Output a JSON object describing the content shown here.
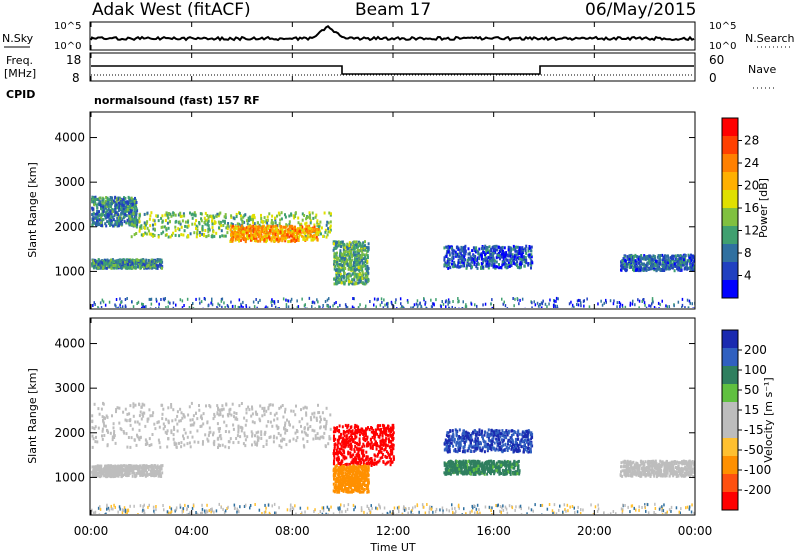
{
  "header": {
    "radar": "Adak West (fitACF)",
    "beam": "Beam 17",
    "date": "06/May/2015"
  },
  "summary_panels": {
    "nsky_label": "N.Sky",
    "nsearch_label": "N.Search",
    "freq_label_1": "Freq.",
    "freq_label_2": "[MHz]",
    "nave_label": "Nave",
    "cpid_label": "CPID",
    "cpid_text": "normalsound (fast) 157 RF",
    "noise_ticks_left": [
      "10^5",
      "10^0"
    ],
    "noise_ticks_right": [
      "10^5",
      "10^0"
    ],
    "freq_ticks": [
      "18",
      "8"
    ],
    "nave_ticks": [
      "60",
      "0"
    ]
  },
  "colorbars": {
    "power": {
      "label": "Power [dB]",
      "ticks": [
        "28",
        "24",
        "20",
        "16",
        "12",
        "8",
        "4"
      ],
      "colors": [
        "#ff0000",
        "#ff4000",
        "#ff8000",
        "#ffb000",
        "#e0e000",
        "#80c040",
        "#40a070",
        "#3070a0",
        "#2040c0",
        "#0000ff"
      ]
    },
    "velocity": {
      "label": "Velocity [m s⁻¹]",
      "ticks": [
        "200",
        "100",
        "50",
        "15",
        "-15",
        "-50",
        "-100",
        "-200"
      ],
      "colors": [
        "#1a2ab0",
        "#3060c0",
        "#2f7f5f",
        "#60c040",
        "#bdbdbd",
        "#bdbdbd",
        "#ffc030",
        "#ff9000",
        "#ff5010",
        "#ff0000"
      ]
    }
  },
  "axes": {
    "ylabel": "Slant Range [km]",
    "yticks": [
      "4000",
      "3000",
      "2000",
      "1000"
    ],
    "xlabel": "Time UT",
    "xticks": [
      "00:00",
      "04:00",
      "08:00",
      "12:00",
      "16:00",
      "20:00",
      "00:00"
    ]
  },
  "chart_data": [
    {
      "type": "heatmap",
      "title": "Power",
      "ylabel": "Slant Range [km]",
      "xlabel": "Time UT",
      "xlim_hours": [
        0,
        24
      ],
      "ylim_km": [
        180,
        4550
      ],
      "colorbar_label": "Power [dB]",
      "colorbar_ticks": [
        28,
        24,
        20,
        16,
        12,
        8,
        4
      ],
      "features": [
        {
          "t_start": 0.0,
          "t_end": 1.8,
          "range_start": 2050,
          "range_end": 2700,
          "value_db": 9
        },
        {
          "t_start": 0.0,
          "t_end": 2.8,
          "range_start": 1100,
          "range_end": 1300,
          "value_db": 10
        },
        {
          "t_start": 1.5,
          "t_end": 9.5,
          "range_start": 1800,
          "range_end": 2350,
          "value_db": 14
        },
        {
          "t_start": 5.5,
          "t_end": 9.0,
          "range_start": 1700,
          "range_end": 2050,
          "value_db": 22
        },
        {
          "t_start": 9.6,
          "t_end": 11.0,
          "range_start": 750,
          "range_end": 1700,
          "value_db": 12
        },
        {
          "t_start": 14.0,
          "t_end": 17.5,
          "range_start": 1100,
          "range_end": 1600,
          "value_db": 6
        },
        {
          "t_start": 21.0,
          "t_end": 24.0,
          "range_start": 1050,
          "range_end": 1400,
          "value_db": 7
        }
      ]
    },
    {
      "type": "heatmap",
      "title": "Velocity",
      "ylabel": "Slant Range [km]",
      "xlabel": "Time UT",
      "xlim_hours": [
        0,
        24
      ],
      "ylim_km": [
        180,
        4550
      ],
      "colorbar_label": "Velocity [m s⁻¹]",
      "colorbar_ticks": [
        200,
        100,
        50,
        15,
        -15,
        -50,
        -100,
        -200
      ],
      "features": [
        {
          "t_start": 0.0,
          "t_end": 9.5,
          "range_start": 1700,
          "range_end": 2700,
          "value_ms": 0
        },
        {
          "t_start": 0.0,
          "t_end": 2.8,
          "range_start": 1050,
          "range_end": 1300,
          "value_ms": 0
        },
        {
          "t_start": 9.6,
          "t_end": 12.0,
          "range_start": 1300,
          "range_end": 2200,
          "value_ms": -200
        },
        {
          "t_start": 9.6,
          "t_end": 11.0,
          "range_start": 700,
          "range_end": 1300,
          "value_ms": -80
        },
        {
          "t_start": 14.0,
          "t_end": 17.5,
          "range_start": 1600,
          "range_end": 2100,
          "value_ms": 150
        },
        {
          "t_start": 14.0,
          "t_end": 17.0,
          "range_start": 1100,
          "range_end": 1400,
          "value_ms": 40
        },
        {
          "t_start": 21.0,
          "t_end": 24.0,
          "range_start": 1050,
          "range_end": 1400,
          "value_ms": 0
        }
      ]
    }
  ]
}
